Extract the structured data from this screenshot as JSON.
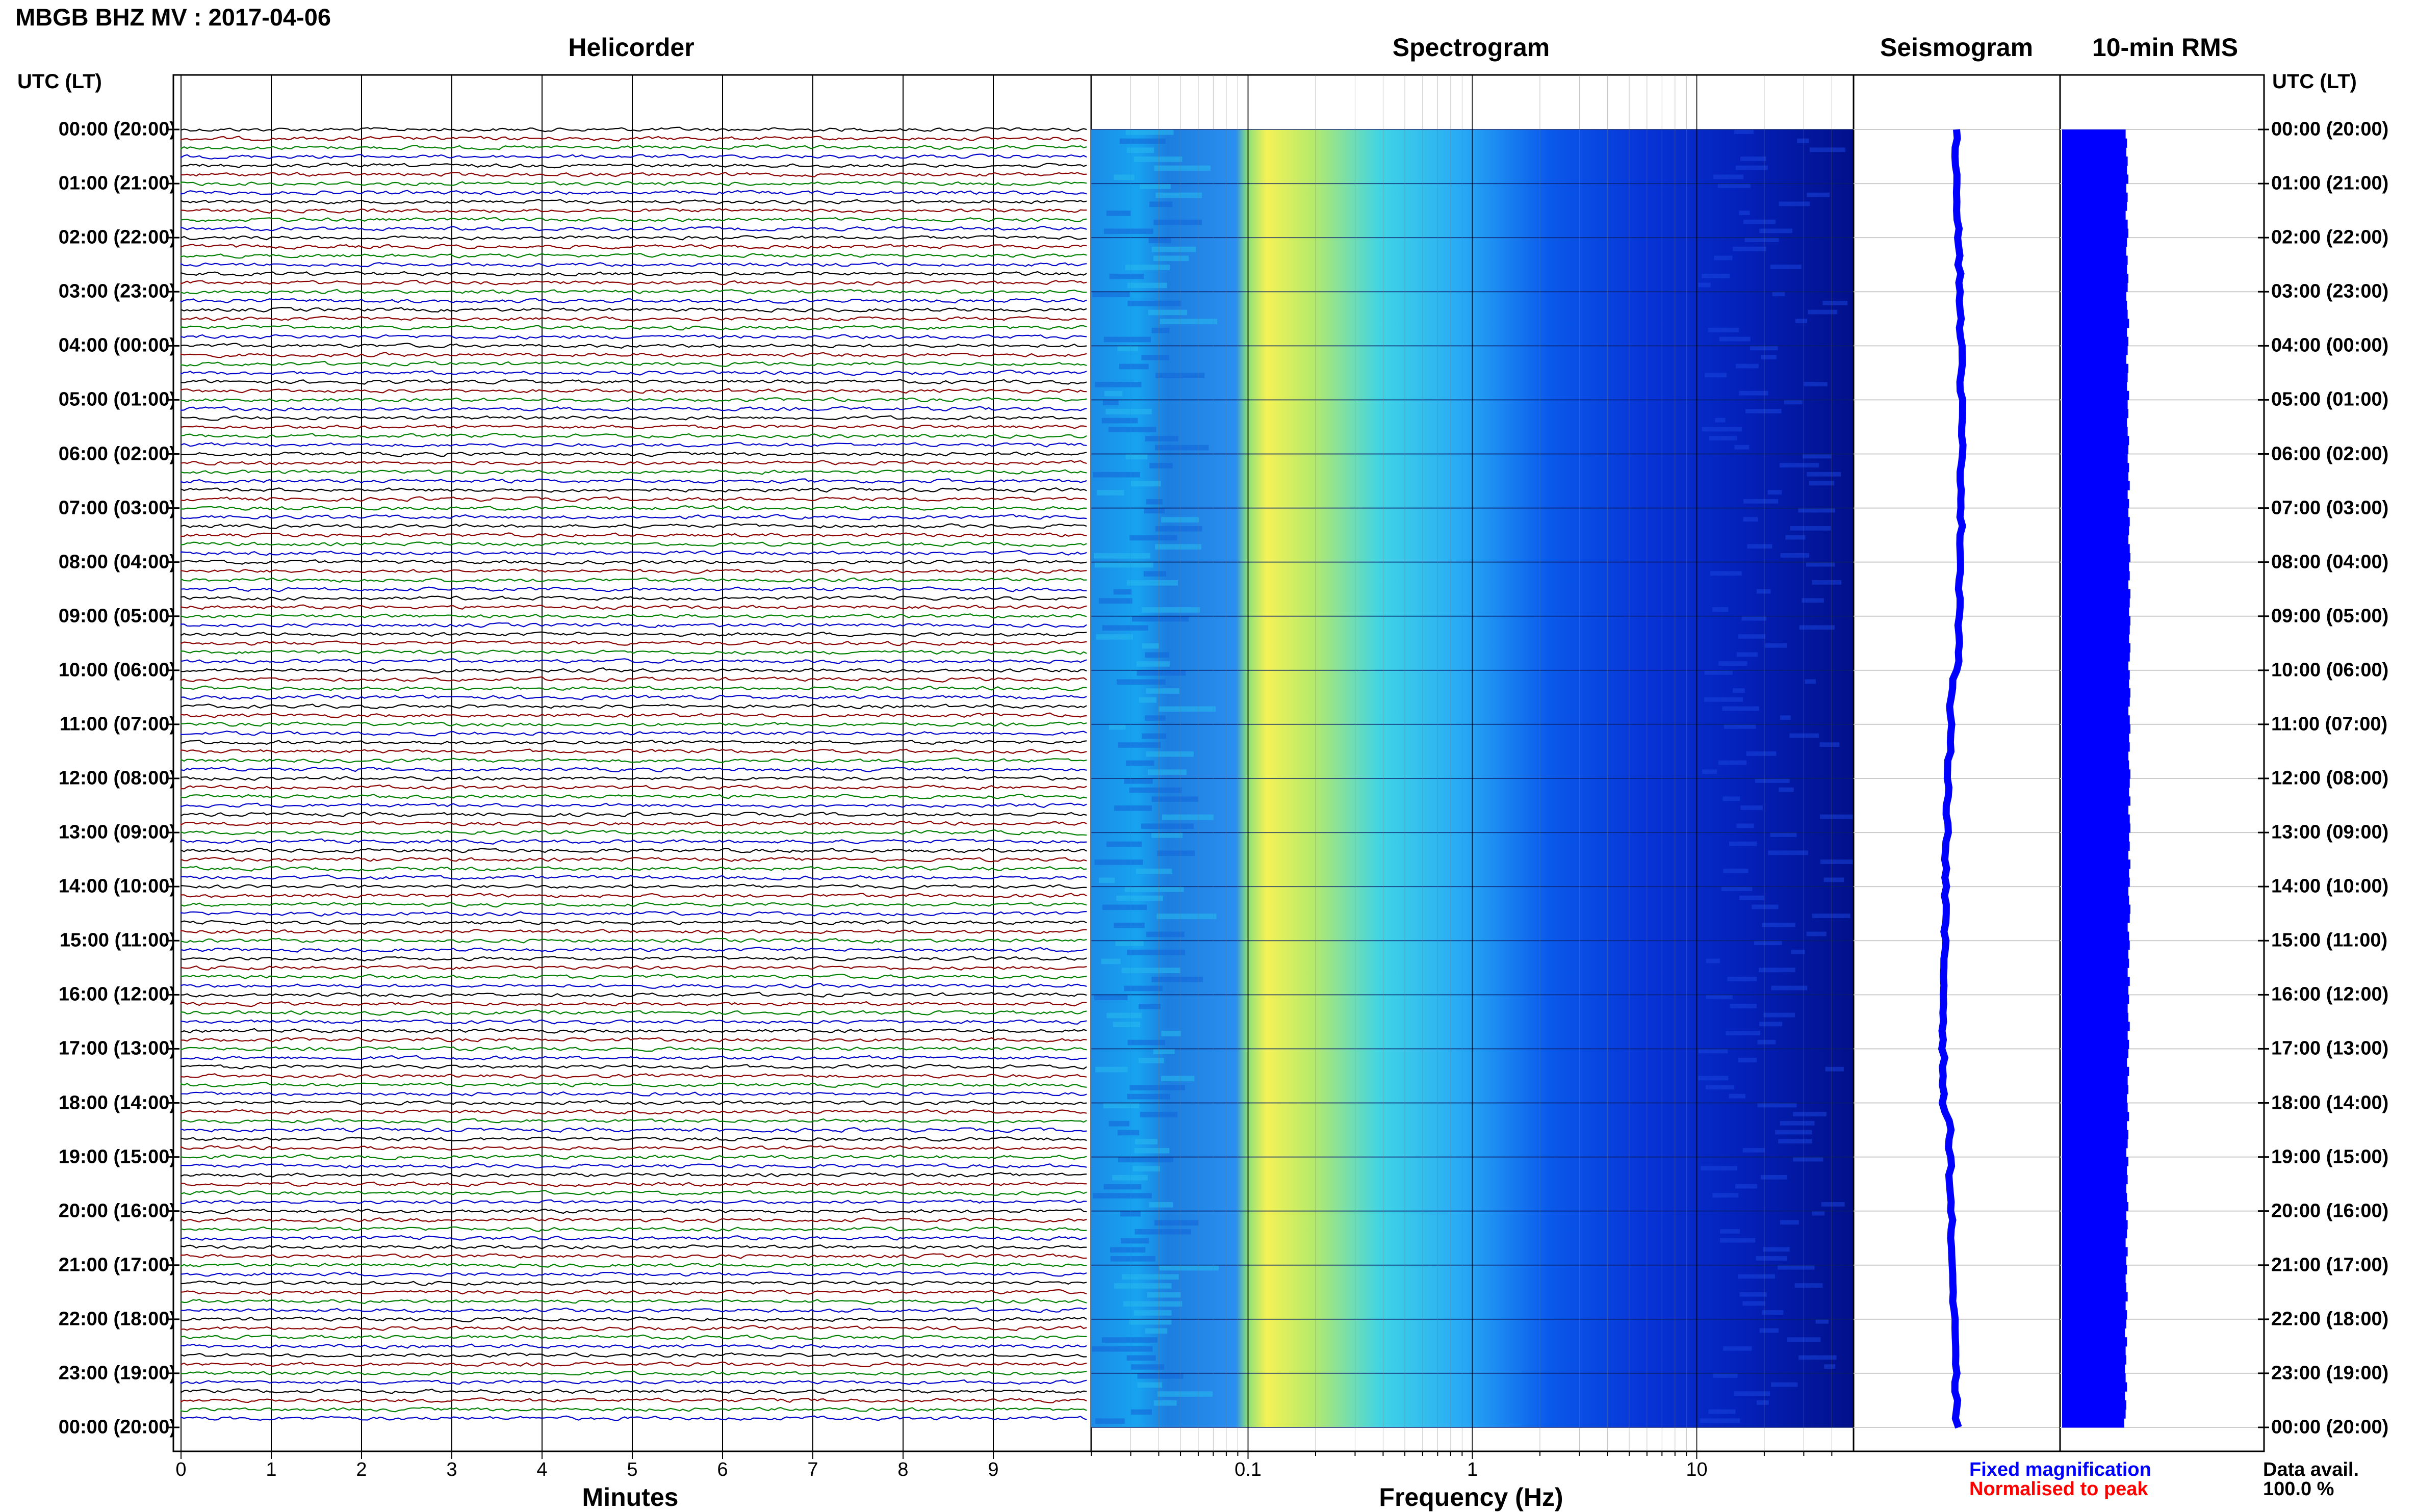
{
  "header": {
    "title": "MBGB BHZ MV : 2017-04-06",
    "utc_label_left": "UTC (LT)",
    "utc_label_right": "UTC (LT)"
  },
  "panels": {
    "helicorder": "Helicorder",
    "spectrogram": "Spectrogram",
    "seismogram": "Seismogram",
    "rms": "10-min RMS"
  },
  "time_labels": [
    "00:00 (20:00)",
    "01:00 (21:00)",
    "02:00 (22:00)",
    "03:00 (23:00)",
    "04:00 (00:00)",
    "05:00 (01:00)",
    "06:00 (02:00)",
    "07:00 (03:00)",
    "08:00 (04:00)",
    "09:00 (05:00)",
    "10:00 (06:00)",
    "11:00 (07:00)",
    "12:00 (08:00)",
    "13:00 (09:00)",
    "14:00 (10:00)",
    "15:00 (11:00)",
    "16:00 (12:00)",
    "17:00 (13:00)",
    "18:00 (14:00)",
    "19:00 (15:00)",
    "20:00 (16:00)",
    "21:00 (17:00)",
    "22:00 (18:00)",
    "23:00 (19:00)",
    "00:00 (20:00)"
  ],
  "helicorder_axis": {
    "title": "Minutes",
    "ticks": [
      "0",
      "1",
      "2",
      "3",
      "4",
      "5",
      "6",
      "7",
      "8",
      "9"
    ]
  },
  "spectrogram_axis": {
    "title": "Frequency (Hz)",
    "ticks": [
      "0.1",
      "1",
      "10"
    ]
  },
  "legend": {
    "fixed": "Fixed magnification",
    "normalised": "Normalised to peak"
  },
  "data_availability": {
    "label": "Data avail.",
    "value": "100.0 %"
  },
  "colors": {
    "trace_colors": [
      "#000000",
      "#8b0000",
      "#008000",
      "#0000cc"
    ],
    "seismogram": "#0000ff",
    "rms": "#0000ff",
    "spectrogram_low": "#00008b",
    "spectrogram_high": "#ffff33"
  },
  "chart_data": [
    {
      "type": "line",
      "panel": "helicorder",
      "title": "Helicorder",
      "xlabel": "Minutes",
      "xlim": [
        0,
        10
      ],
      "rows_per_hour": 6,
      "total_rows": 144,
      "trace_color_cycle": [
        "#000000",
        "#8b0000",
        "#008000",
        "#0000cc"
      ],
      "ylabel": "UTC (LT)"
    },
    {
      "type": "heatmap",
      "panel": "spectrogram",
      "title": "Spectrogram",
      "xlabel": "Frequency (Hz)",
      "xscale": "log",
      "xlim": [
        0.02,
        50
      ],
      "ylabel": "UTC (LT)",
      "peak_band_hz": [
        0.12,
        0.5
      ]
    },
    {
      "type": "line",
      "panel": "seismogram",
      "title": "Seismogram",
      "description_color": "#0000ff"
    },
    {
      "type": "bar",
      "panel": "rms",
      "title": "10-min RMS",
      "bins": 144,
      "relative_values": [
        0.93,
        0.95,
        0.94,
        0.96,
        0.95,
        0.97,
        0.94,
        0.96,
        0.95,
        0.93,
        0.96,
        0.97,
        0.95,
        0.94,
        0.96,
        0.95,
        0.97,
        0.96,
        0.94,
        0.95,
        0.96,
        0.98,
        0.95,
        0.97,
        0.96,
        0.94,
        0.97,
        0.96,
        0.95,
        0.98,
        0.96,
        0.97,
        0.95,
        0.96,
        0.98,
        0.97,
        0.96,
        0.98,
        0.97,
        0.99,
        0.96,
        0.98,
        0.97,
        0.99,
        0.98,
        0.97,
        0.99,
        1.0,
        0.98,
        0.99,
        0.97,
        1.0,
        0.99,
        0.98,
        1.0,
        0.99,
        0.98,
        1.0,
        0.99,
        0.97,
        0.99,
        0.98,
        1.0,
        0.99,
        0.97,
        0.99,
        1.0,
        0.98,
        0.99,
        0.97,
        0.98,
        1.0,
        0.99,
        0.98,
        1.0,
        0.97,
        0.99,
        1.0,
        0.98,
        0.99,
        0.97,
        1.0,
        0.98,
        0.99,
        0.97,
        0.98,
        1.0,
        0.99,
        0.96,
        0.98,
        0.99,
        0.97,
        0.98,
        0.96,
        0.99,
        0.97,
        0.98,
        0.96,
        0.97,
        0.99,
        0.96,
        0.98,
        0.97,
        0.95,
        0.98,
        0.96,
        0.97,
        0.95,
        0.96,
        0.98,
        0.95,
        0.97,
        0.96,
        0.94,
        0.97,
        0.95,
        0.96,
        0.94,
        0.95,
        0.97,
        0.94,
        0.96,
        0.95,
        0.93,
        0.96,
        0.94,
        0.95,
        0.93,
        0.94,
        0.96,
        0.93,
        0.95,
        0.94,
        0.92,
        0.95,
        0.93,
        0.94,
        0.92,
        0.93,
        0.95,
        0.92,
        0.94,
        0.93,
        0.91
      ]
    }
  ]
}
